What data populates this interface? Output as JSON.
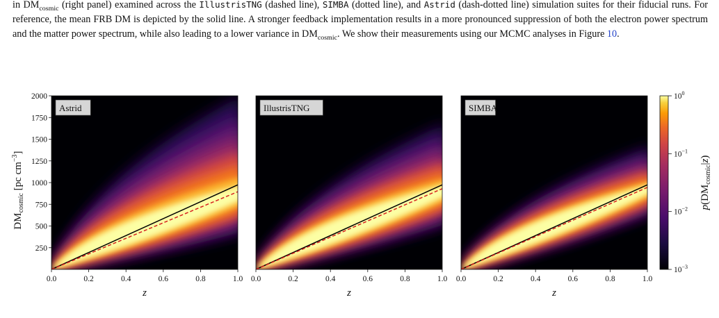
{
  "caption": {
    "line1_prefix": "in DM",
    "line1_sub": "cosmic",
    "line1_a": " (right panel) examined across the ",
    "tng": "IllustrisTNG",
    "line1_b": " (dashed line), ",
    "simba": "SIMBA",
    "line1_c": " (dotted line), and ",
    "astrid": "Astrid",
    "line1_d": " (dash-dotted line)",
    "line2": "simulation suites for their fiducial runs. For reference, the mean FRB DM is depicted by the solid line. A stronger feedback implementation results in a more pronounced suppression of both the electron power spectrum and the matter power spectrum, while also leading to a lower variance in DM",
    "line2_sub": "cosmic",
    "line2_end": ". We show their measurements using our MCMC analyses in Figure ",
    "fig_ref": "10",
    "period": "."
  },
  "chart_data": [
    {
      "type": "heatmap",
      "panel_label": "Astrid",
      "xlabel": "z",
      "ylabel": "DMcosmic [pc cm^-3]",
      "xlim": [
        0,
        1
      ],
      "ylim": [
        0,
        2000
      ],
      "x_ticks": [
        "0.0",
        "0.2",
        "0.4",
        "0.6",
        "0.8",
        "1.0"
      ],
      "y_ticks": [
        "250",
        "500",
        "750",
        "1000",
        "1250",
        "1500",
        "1750",
        "2000"
      ],
      "mean_line": {
        "z": [
          0,
          1
        ],
        "dm": [
          0,
          975
        ]
      },
      "median_line": {
        "z": [
          0,
          1
        ],
        "dm": [
          0,
          895
        ]
      },
      "distribution_upper_edge_at_z1": 2000,
      "distribution_lower_edge_at_z1": 420
    },
    {
      "type": "heatmap",
      "panel_label": "IllustrisTNG",
      "xlabel": "z",
      "xlim": [
        0,
        1
      ],
      "ylim": [
        0,
        2000
      ],
      "x_ticks": [
        "0.0",
        "0.2",
        "0.4",
        "0.6",
        "0.8",
        "1.0"
      ],
      "mean_line": {
        "z": [
          0,
          1
        ],
        "dm": [
          0,
          975
        ]
      },
      "median_line": {
        "z": [
          0,
          1
        ],
        "dm": [
          0,
          930
        ]
      },
      "distribution_upper_edge_at_z1": 1680,
      "distribution_lower_edge_at_z1": 520
    },
    {
      "type": "heatmap",
      "panel_label": "SIMBA",
      "xlabel": "z",
      "xlim": [
        0,
        1
      ],
      "ylim": [
        0,
        2000
      ],
      "x_ticks": [
        "0.0",
        "0.2",
        "0.4",
        "0.6",
        "0.8",
        "1.0"
      ],
      "mean_line": {
        "z": [
          0,
          1
        ],
        "dm": [
          0,
          975
        ]
      },
      "median_line": {
        "z": [
          0,
          1
        ],
        "dm": [
          0,
          945
        ]
      },
      "distribution_upper_edge_at_z1": 1420,
      "distribution_lower_edge_at_z1": 650
    }
  ],
  "colorbar": {
    "label": "p(DMcosmic|z)",
    "ticks": [
      "10^0",
      "10^-1",
      "10^-2",
      "10^-3"
    ],
    "scale": "log",
    "range": [
      0.001,
      1
    ],
    "colormap": "inferno"
  },
  "colors": {
    "mean_line": "#000000",
    "median_line": "#d62020",
    "link": "#2140c8"
  }
}
